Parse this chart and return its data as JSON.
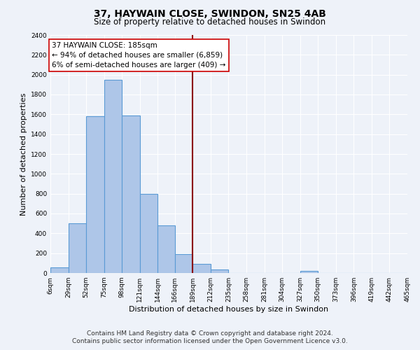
{
  "title": "37, HAYWAIN CLOSE, SWINDON, SN25 4AB",
  "subtitle": "Size of property relative to detached houses in Swindon",
  "xlabel": "Distribution of detached houses by size in Swindon",
  "ylabel": "Number of detached properties",
  "footer_line1": "Contains HM Land Registry data © Crown copyright and database right 2024.",
  "footer_line2": "Contains public sector information licensed under the Open Government Licence v3.0.",
  "bin_edges": [
    6,
    29,
    52,
    75,
    98,
    121,
    144,
    166,
    189,
    212,
    235,
    258,
    281,
    304,
    327,
    350,
    373,
    396,
    419,
    442,
    465
  ],
  "bar_heights": [
    55,
    500,
    1580,
    1950,
    1590,
    800,
    480,
    190,
    95,
    35,
    0,
    0,
    0,
    0,
    20,
    0,
    0,
    0,
    0,
    0
  ],
  "bar_color": "#aec6e8",
  "bar_edge_color": "#5b9bd5",
  "vline_x": 189,
  "vline_color": "#8b0000",
  "annotation_title": "37 HAYWAIN CLOSE: 185sqm",
  "annotation_line1": "← 94% of detached houses are smaller (6,859)",
  "annotation_line2": "6% of semi-detached houses are larger (409) →",
  "annotation_box_edge": "#cc0000",
  "ylim": [
    0,
    2400
  ],
  "yticks": [
    0,
    200,
    400,
    600,
    800,
    1000,
    1200,
    1400,
    1600,
    1800,
    2000,
    2200,
    2400
  ],
  "tick_labels": [
    "6sqm",
    "29sqm",
    "52sqm",
    "75sqm",
    "98sqm",
    "121sqm",
    "144sqm",
    "166sqm",
    "189sqm",
    "212sqm",
    "235sqm",
    "258sqm",
    "281sqm",
    "304sqm",
    "327sqm",
    "350sqm",
    "373sqm",
    "396sqm",
    "419sqm",
    "442sqm",
    "465sqm"
  ],
  "bg_color": "#eef2f9",
  "plot_bg_color": "#eef2f9",
  "grid_color": "#ffffff",
  "title_fontsize": 10,
  "subtitle_fontsize": 8.5,
  "axis_label_fontsize": 8,
  "tick_fontsize": 6.5,
  "footer_fontsize": 6.5
}
